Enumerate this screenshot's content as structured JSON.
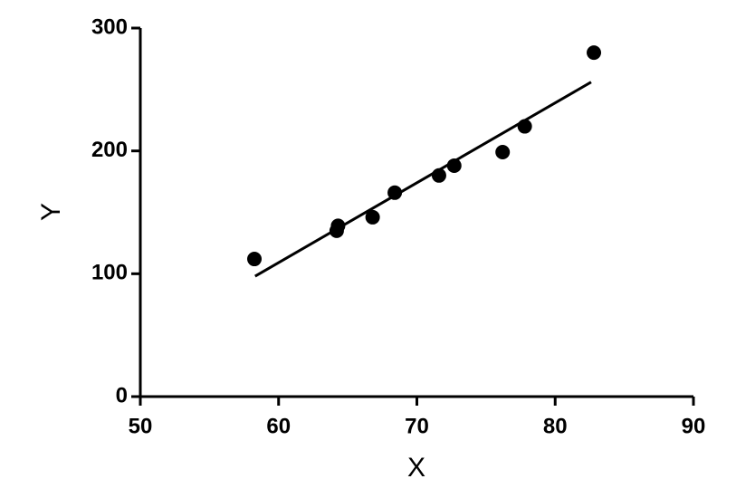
{
  "chart_data": {
    "type": "scatter",
    "x_label": "X",
    "y_label": "Y",
    "x": [
      58.25,
      64.2,
      64.3,
      66.8,
      68.4,
      71.6,
      72.7,
      76.2,
      77.8,
      82.8
    ],
    "values": [
      112,
      135,
      139,
      146,
      166,
      180,
      188,
      199,
      220,
      280
    ],
    "color": "#000000",
    "fit": {
      "x": [
        58.3,
        82.6
      ],
      "values": [
        98,
        256
      ]
    },
    "xlim": [
      50,
      90
    ],
    "ylim": [
      0,
      300
    ],
    "xticks": [
      50,
      60,
      70,
      80,
      90
    ],
    "yticks": [
      0,
      100,
      200,
      300
    ]
  }
}
